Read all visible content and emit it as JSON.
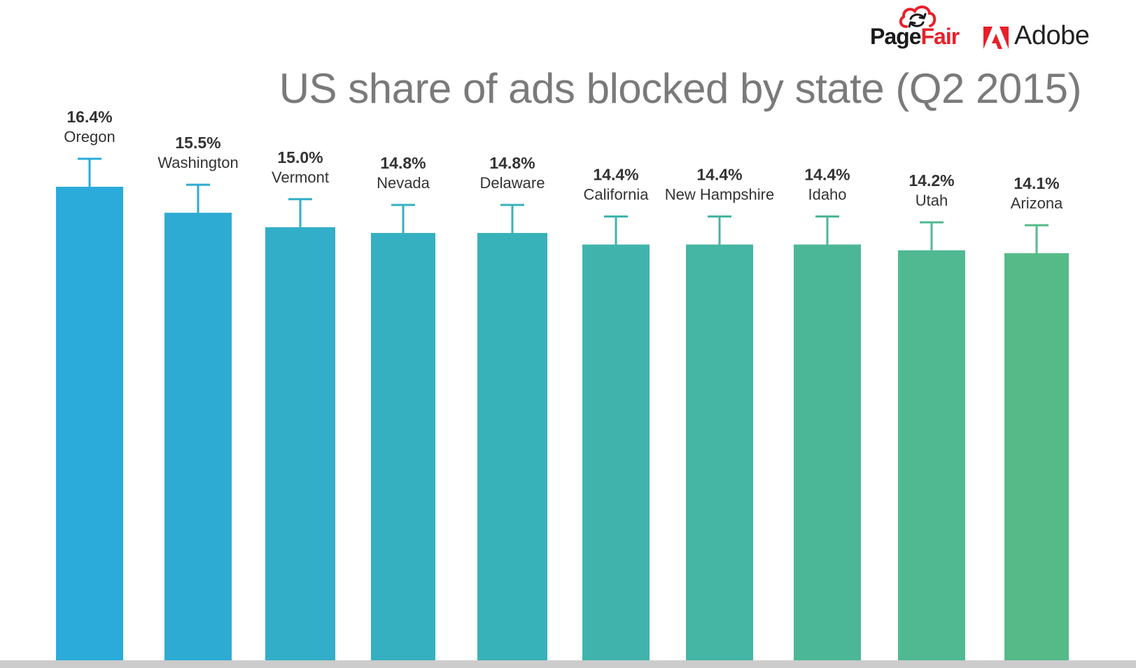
{
  "logos": {
    "pagefair_page": "Page",
    "pagefair_fair": "Fair",
    "adobe": "Adobe"
  },
  "chart_data": {
    "type": "bar",
    "title": "US share of ads blocked by state (Q2 2015)",
    "xlabel": "",
    "ylabel": "",
    "categories": [
      "Oregon",
      "Washington",
      "Vermont",
      "Nevada",
      "Delaware",
      "California",
      "New Hampshire",
      "Idaho",
      "Utah",
      "Arizona"
    ],
    "values": [
      16.4,
      15.5,
      15.0,
      14.8,
      14.8,
      14.4,
      14.4,
      14.4,
      14.2,
      14.1
    ],
    "value_labels": [
      "16.4%",
      "15.5%",
      "15.0%",
      "14.8%",
      "14.8%",
      "14.4%",
      "14.4%",
      "14.4%",
      "14.2%",
      "14.1%"
    ],
    "ylim": [
      0,
      16.4
    ],
    "error_bars": true,
    "grid": false,
    "legend": "none",
    "colors": [
      "#2aabd9",
      "#2dabd3",
      "#32aec8",
      "#35b0c0",
      "#38b2b9",
      "#40b4ac",
      "#45b5a4",
      "#4cb796",
      "#51b992",
      "#56ba88"
    ],
    "baseline_color": "#cccccc"
  }
}
